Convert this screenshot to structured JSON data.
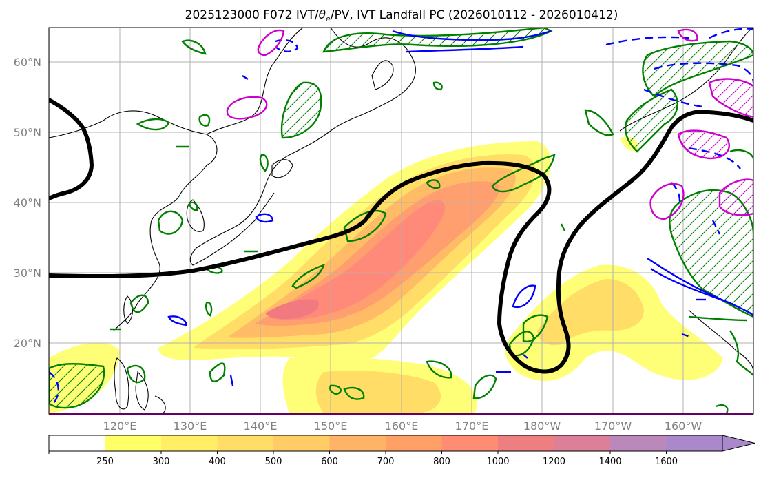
{
  "map": {
    "title_prefix": "2025123000 F072 IVT/",
    "title_symbol": "θ",
    "title_subscript": "e",
    "title_suffix": "/PV, IVT Landfall PC (2026010112 - 2026010412)",
    "lat_labels": [
      "60°N",
      "50°N",
      "40°N",
      "30°N",
      "20°N"
    ],
    "lon_labels": [
      "120°E",
      "130°E",
      "140°E",
      "150°E",
      "160°E",
      "170°E",
      "180°W",
      "170°W",
      "160°W"
    ],
    "extent": {
      "lon": [
        110,
        210
      ],
      "lat": [
        10,
        65
      ]
    }
  },
  "colorbar": {
    "levels": [
      "250",
      "300",
      "400",
      "500",
      "600",
      "700",
      "800",
      "1000",
      "1200",
      "1400",
      "1600"
    ],
    "colors": [
      "#ffffff",
      "#ffff66",
      "#ffee66",
      "#ffdd66",
      "#ffcc66",
      "#ffb366",
      "#ffa066",
      "#ff8c73",
      "#ee7f80",
      "#dd7f99",
      "#bb88bb",
      "#aa88cc"
    ],
    "extend": "max"
  },
  "colors": {
    "ivt_fill": "#ff8080",
    "theta_e_contour": "#008000",
    "pv_positive": "#0000ff",
    "pv_negative": "#cc00cc",
    "landfall_pc": "#000000",
    "coastline": "#000000",
    "gridline": "#b0b0b0"
  }
}
